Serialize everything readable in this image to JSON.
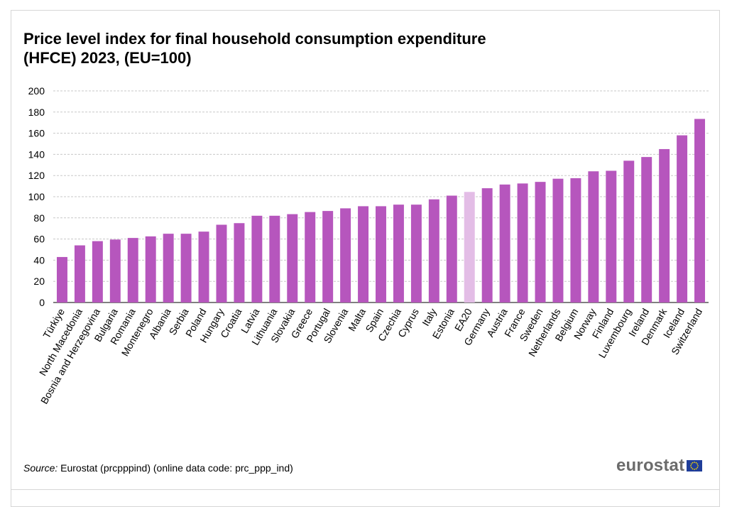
{
  "chart_data": {
    "type": "bar",
    "title": "Price level index for final household consumption expenditure (HFCE) 2023, (EU=100)",
    "title_lines": [
      "Price level index for final household consumption expenditure",
      "(HFCE) 2023, (EU=100)"
    ],
    "categories": [
      "Türkiye",
      "North Macedonia",
      "Bosnia and Herzegovina",
      "Bulgaria",
      "Romania",
      "Montenegro",
      "Albania",
      "Serbia",
      "Poland",
      "Hungary",
      "Croatia",
      "Latvia",
      "Lithuania",
      "Slovakia",
      "Greece",
      "Portugal",
      "Slovenia",
      "Malta",
      "Spain",
      "Czechia",
      "Cyprus",
      "Italy",
      "Estonia",
      "EA20",
      "Germany",
      "Austria",
      "France",
      "Sweden",
      "Netherlands",
      "Belgium",
      "Norway",
      "Finland",
      "Luxembourg",
      "Ireland",
      "Denmark",
      "Iceland",
      "Switzerland"
    ],
    "values": [
      43,
      54,
      58,
      59.5,
      61,
      62.5,
      65,
      65,
      67,
      73.5,
      75,
      82,
      82,
      83.5,
      85.5,
      86.5,
      89,
      91,
      91,
      92.5,
      92.5,
      97.5,
      101,
      104.5,
      108,
      111.5,
      112.5,
      114,
      117,
      117.5,
      124,
      124.5,
      134,
      137.5,
      145,
      158,
      173.5
    ],
    "highlight_category": "EA20",
    "colors": {
      "bar": "#b656bd",
      "highlight": "#e3bde6",
      "grid": "#c8c8c8"
    },
    "ylim": [
      0,
      200
    ],
    "yticks": [
      0,
      20,
      40,
      60,
      80,
      100,
      120,
      140,
      160,
      180,
      200
    ],
    "grid": true,
    "xlabel": "",
    "ylabel": ""
  },
  "source": {
    "label": "Source:",
    "text": "Eurostat (prcpppind) (online data code: prc_ppp_ind)"
  },
  "logo": {
    "text": "eurostat",
    "flag_icon": "eu-flag-icon"
  }
}
